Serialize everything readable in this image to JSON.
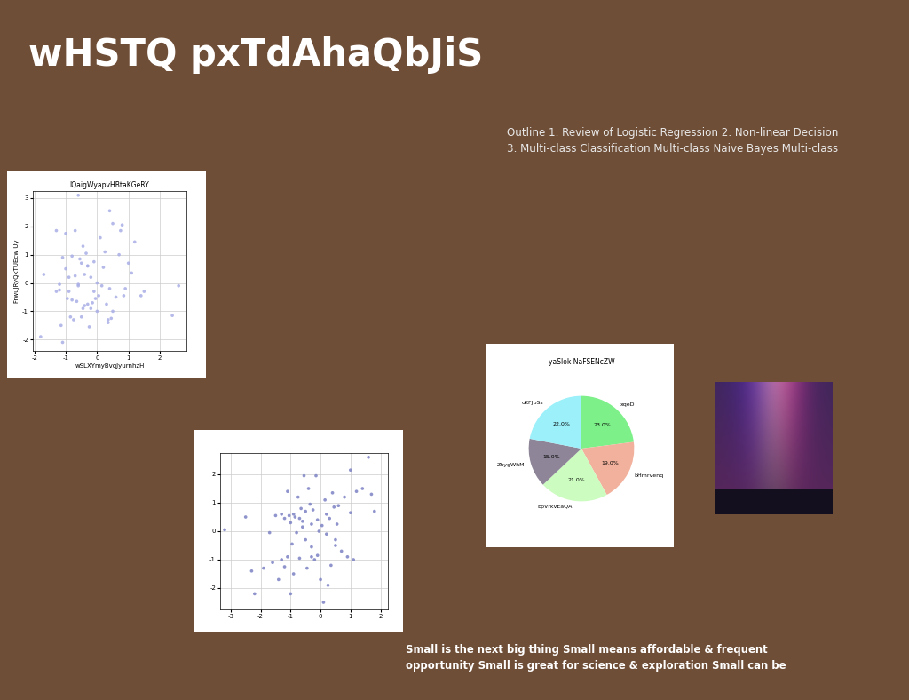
{
  "title": "wHSTQ pxTdAhaQbJiS",
  "outline": {
    "lines": [
      "Outline 1. Review of Logistic Regression 2. Non-linear Decision",
      "3. Multi-class Classification Multi-class Naive Bayes Multi-class"
    ]
  },
  "caption": {
    "lines": [
      "Small is the next big thing Small means affordable & frequent",
      "opportunity Small is great for science & exploration Small can be"
    ]
  },
  "chart_data": [
    {
      "type": "scatter",
      "title": "lQaigWyapvHBtaKGeRY",
      "x_label": "wSLXYmyBvqJyurnhzH",
      "y_label": "FrwuJRyQkTUEcw Uy",
      "color": "#a9aee6",
      "grid": true,
      "xlim": [
        -2.05,
        2.85
      ],
      "xticks": [
        -2,
        -1,
        0,
        1,
        2
      ],
      "ylim": [
        -2.4,
        3.25
      ],
      "yticks": [
        -2,
        -1,
        0,
        1,
        2,
        3
      ],
      "x": [
        -1.8,
        -1.7,
        -1.3,
        -1.3,
        -1.2,
        -1.15,
        -1.1,
        -1.1,
        -1.0,
        -1.0,
        -0.95,
        -0.9,
        -0.9,
        -0.85,
        -0.8,
        -0.8,
        -0.75,
        -0.7,
        -0.7,
        -0.65,
        -0.6,
        -0.6,
        -0.55,
        -0.5,
        -0.5,
        -0.45,
        -0.45,
        -0.4,
        -0.4,
        -0.35,
        -0.3,
        -0.3,
        -0.25,
        -0.2,
        -0.2,
        -0.15,
        -0.1,
        -0.1,
        -0.05,
        0.0,
        0.0,
        0.05,
        0.1,
        0.15,
        0.2,
        0.25,
        0.3,
        0.35,
        0.4,
        0.4,
        0.45,
        0.5,
        0.6,
        0.7,
        0.75,
        0.8,
        0.9,
        1.0,
        1.1,
        1.2,
        1.4,
        1.5,
        2.4,
        2.6,
        -0.6,
        0.35,
        0.5,
        -1.2,
        -0.3,
        0.85
      ],
      "values": [
        -1.9,
        0.3,
        1.85,
        -0.3,
        -0.05,
        -1.5,
        0.9,
        -2.1,
        0.5,
        1.75,
        -0.55,
        0.2,
        -0.3,
        -1.2,
        0.95,
        -0.6,
        -1.3,
        0.25,
        1.85,
        -0.65,
        3.1,
        -0.1,
        0.85,
        -1.2,
        0.7,
        1.3,
        -0.9,
        0.3,
        -0.8,
        1.05,
        0.6,
        -0.75,
        -1.55,
        -0.9,
        0.2,
        -0.7,
        0.75,
        -0.3,
        -0.55,
        -1.0,
        0.0,
        -0.45,
        1.6,
        -0.1,
        0.55,
        1.1,
        -0.75,
        -1.4,
        2.55,
        -0.2,
        -1.25,
        2.1,
        -0.5,
        1.0,
        1.85,
        2.05,
        -0.2,
        0.7,
        0.35,
        1.45,
        -0.45,
        -0.3,
        -1.15,
        -0.1,
        -0.05,
        -1.3,
        -1.0,
        -0.25,
        0.6,
        -0.45
      ]
    },
    {
      "type": "scatter",
      "color": "#7d82c4",
      "grid": true,
      "xlim": [
        -3.35,
        2.25
      ],
      "xticks": [
        -3,
        -2,
        -1,
        0,
        1,
        2
      ],
      "ylim": [
        -2.75,
        2.75
      ],
      "yticks": [
        -2,
        -1,
        0,
        1,
        2
      ],
      "x": [
        -3.2,
        -2.5,
        -2.3,
        -2.2,
        -1.9,
        -1.7,
        -1.6,
        -1.5,
        -1.4,
        -1.3,
        -1.3,
        -1.2,
        -1.2,
        -1.1,
        -1.1,
        -1.05,
        -1.0,
        -1.0,
        -0.95,
        -0.9,
        -0.9,
        -0.85,
        -0.8,
        -0.75,
        -0.7,
        -0.7,
        -0.65,
        -0.6,
        -0.55,
        -0.5,
        -0.5,
        -0.45,
        -0.4,
        -0.35,
        -0.3,
        -0.3,
        -0.25,
        -0.2,
        -0.15,
        -0.1,
        -0.1,
        -0.05,
        0.0,
        0.05,
        0.1,
        0.15,
        0.2,
        0.25,
        0.3,
        0.35,
        0.4,
        0.45,
        0.5,
        0.55,
        0.6,
        0.7,
        0.8,
        0.9,
        1.0,
        1.1,
        1.2,
        1.4,
        1.6,
        1.7,
        1.8,
        1.0,
        0.5,
        -0.3,
        0.2,
        -0.6
      ],
      "values": [
        0.05,
        0.5,
        -1.4,
        -2.2,
        -1.3,
        -0.05,
        -1.1,
        0.55,
        -1.7,
        0.6,
        -1.0,
        0.45,
        -1.25,
        1.4,
        -0.9,
        0.55,
        -2.2,
        0.3,
        -0.45,
        0.6,
        -1.5,
        0.5,
        -0.05,
        1.2,
        0.45,
        -0.95,
        0.8,
        0.35,
        1.95,
        -0.3,
        0.7,
        -1.3,
        1.5,
        0.95,
        0.25,
        -0.55,
        0.75,
        -1.0,
        1.95,
        0.4,
        -0.85,
        0.0,
        -1.7,
        0.2,
        -2.5,
        1.1,
        0.6,
        -1.9,
        0.45,
        -1.2,
        1.35,
        0.85,
        -0.5,
        0.25,
        0.9,
        -0.7,
        1.2,
        -0.9,
        2.15,
        -1.0,
        1.4,
        1.5,
        2.6,
        1.3,
        0.7,
        0.65,
        -0.3,
        -0.9,
        -0.1,
        0.15
      ]
    },
    {
      "type": "pie",
      "title": "yaSlok NaFSENcZW",
      "data_labels": true,
      "categories": [
        "xqeD",
        "bHmrvenq",
        "bpVrkvEaQA",
        "ZhygWhM",
        "oKFJpSs"
      ],
      "values": [
        23.0,
        19.0,
        21.0,
        15.0,
        22.0
      ],
      "value_labels": [
        "23.0%",
        "19.0%",
        "21.0%",
        "15.0%",
        "22.0%"
      ],
      "colors": [
        "#7ef08a",
        "#f2b19c",
        "#ccfcc0",
        "#8e8698",
        "#9bf0fa"
      ]
    }
  ]
}
